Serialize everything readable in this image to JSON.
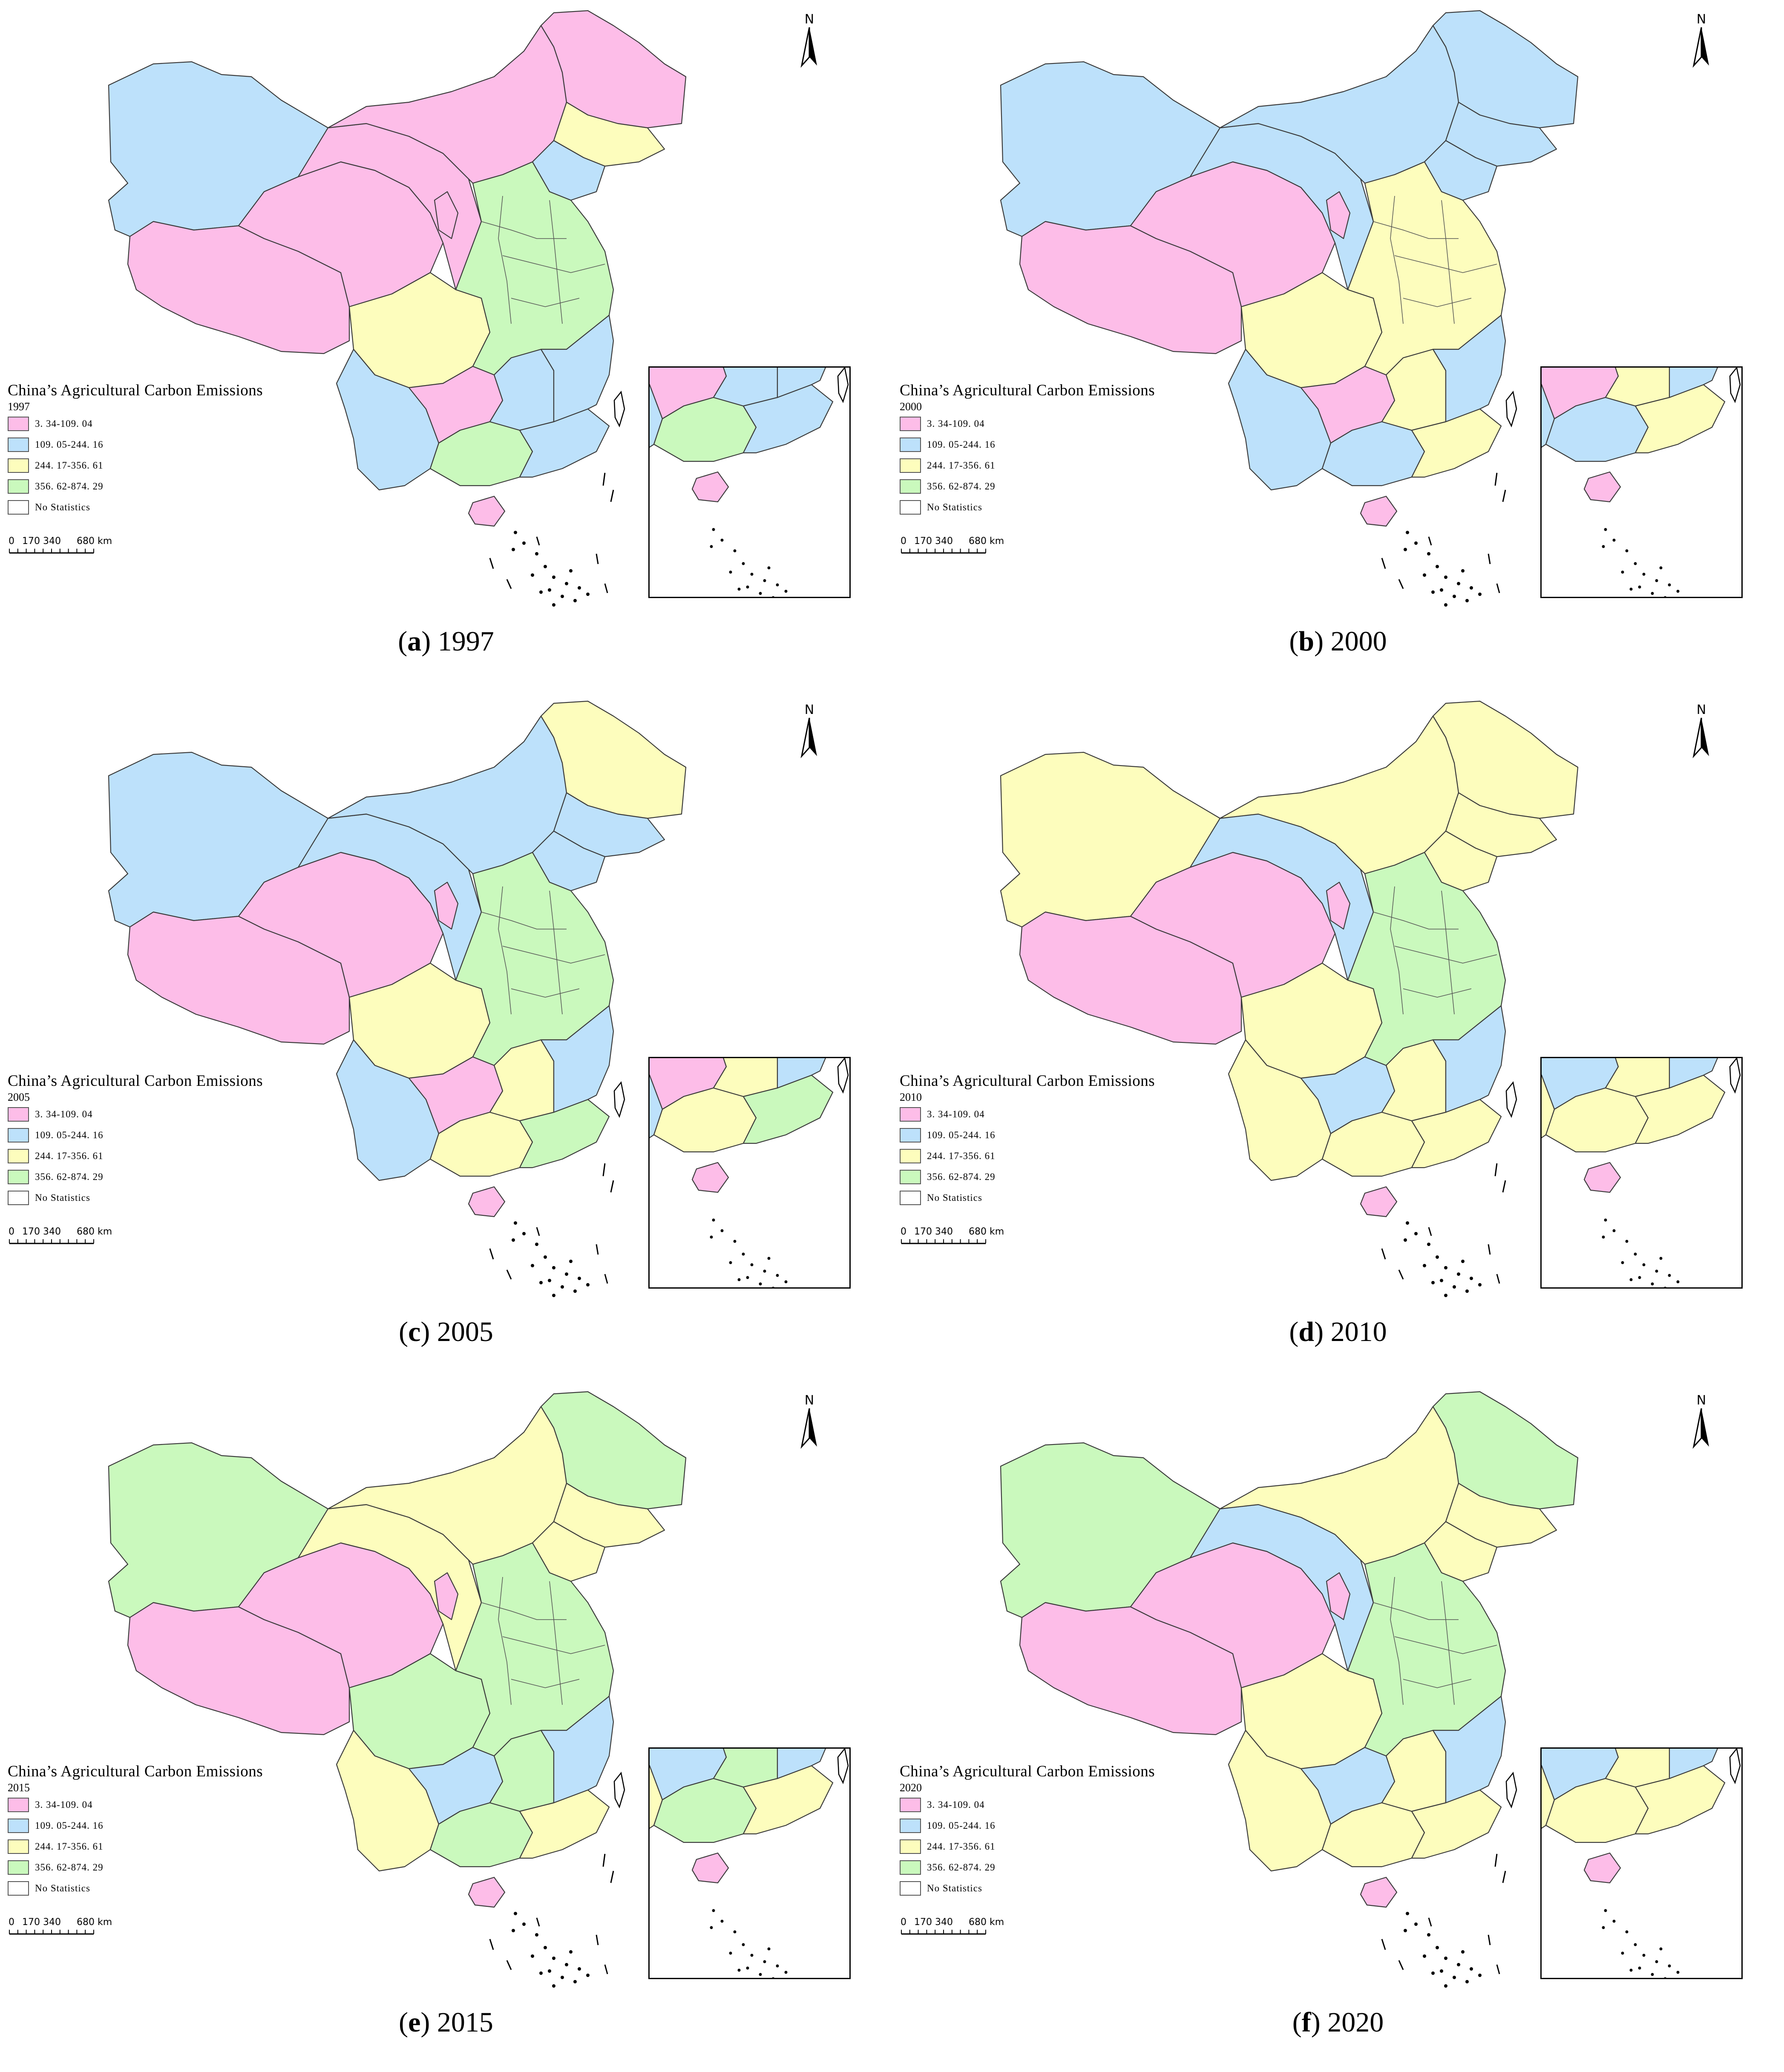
{
  "legend": {
    "title": "China’s Agricultural Carbon Emissions",
    "classes": [
      {
        "label": "3. 34-109. 04",
        "color": "#fdbde8"
      },
      {
        "label": "109. 05-244. 16",
        "color": "#bde1fb"
      },
      {
        "label": "244. 17-356. 61",
        "color": "#fdfdbd"
      },
      {
        "label": "356. 62-874. 29",
        "color": "#caf9bd"
      },
      {
        "label": "No Statistics",
        "color": "#ffffff"
      }
    ]
  },
  "scale_bar": {
    "labels": [
      "0",
      "170 340",
      "680 km"
    ]
  },
  "north_label": "N",
  "panels": [
    {
      "letter": "a",
      "year": "1997",
      "classes": {
        "xinjiang": 1,
        "tibet": 0,
        "qinghai": 0,
        "gansu": 0,
        "inner_mongolia": 0,
        "heilongjiang": 0,
        "jilin": 2,
        "liaoning": 1,
        "sichuan": 2,
        "yunnan": 1,
        "guizhou": 0,
        "guangxi": 3,
        "guangdong": 1,
        "central": 3,
        "hunan": 1,
        "fujian": 1,
        "ningxia": 0,
        "hainan": 0
      }
    },
    {
      "letter": "b",
      "year": "2000",
      "classes": {
        "xinjiang": 1,
        "tibet": 0,
        "qinghai": 0,
        "gansu": 1,
        "inner_mongolia": 1,
        "heilongjiang": 1,
        "jilin": 1,
        "liaoning": 1,
        "sichuan": 2,
        "yunnan": 1,
        "guizhou": 0,
        "guangxi": 1,
        "guangdong": 2,
        "central": 2,
        "hunan": 2,
        "fujian": 1,
        "ningxia": 0,
        "hainan": 0
      }
    },
    {
      "letter": "c",
      "year": "2005",
      "classes": {
        "xinjiang": 1,
        "tibet": 0,
        "qinghai": 0,
        "gansu": 1,
        "inner_mongolia": 1,
        "heilongjiang": 2,
        "jilin": 1,
        "liaoning": 1,
        "sichuan": 2,
        "yunnan": 1,
        "guizhou": 0,
        "guangxi": 2,
        "guangdong": 3,
        "central": 3,
        "hunan": 2,
        "fujian": 1,
        "ningxia": 0,
        "hainan": 0
      }
    },
    {
      "letter": "d",
      "year": "2010",
      "classes": {
        "xinjiang": 2,
        "tibet": 0,
        "qinghai": 0,
        "gansu": 1,
        "inner_mongolia": 2,
        "heilongjiang": 2,
        "jilin": 2,
        "liaoning": 2,
        "sichuan": 2,
        "yunnan": 2,
        "guizhou": 1,
        "guangxi": 2,
        "guangdong": 2,
        "central": 3,
        "hunan": 2,
        "fujian": 1,
        "ningxia": 0,
        "hainan": 0
      }
    },
    {
      "letter": "e",
      "year": "2015",
      "classes": {
        "xinjiang": 3,
        "tibet": 0,
        "qinghai": 0,
        "gansu": 2,
        "inner_mongolia": 2,
        "heilongjiang": 3,
        "jilin": 2,
        "liaoning": 2,
        "sichuan": 3,
        "yunnan": 2,
        "guizhou": 1,
        "guangxi": 3,
        "guangdong": 2,
        "central": 3,
        "hunan": 3,
        "fujian": 1,
        "ningxia": 0,
        "hainan": 0
      }
    },
    {
      "letter": "f",
      "year": "2020",
      "classes": {
        "xinjiang": 3,
        "tibet": 0,
        "qinghai": 0,
        "gansu": 1,
        "inner_mongolia": 2,
        "heilongjiang": 3,
        "jilin": 2,
        "liaoning": 2,
        "sichuan": 2,
        "yunnan": 2,
        "guizhou": 1,
        "guangxi": 2,
        "guangdong": 2,
        "central": 3,
        "hunan": 2,
        "fujian": 1,
        "ningxia": 0,
        "hainan": 0
      }
    }
  ]
}
